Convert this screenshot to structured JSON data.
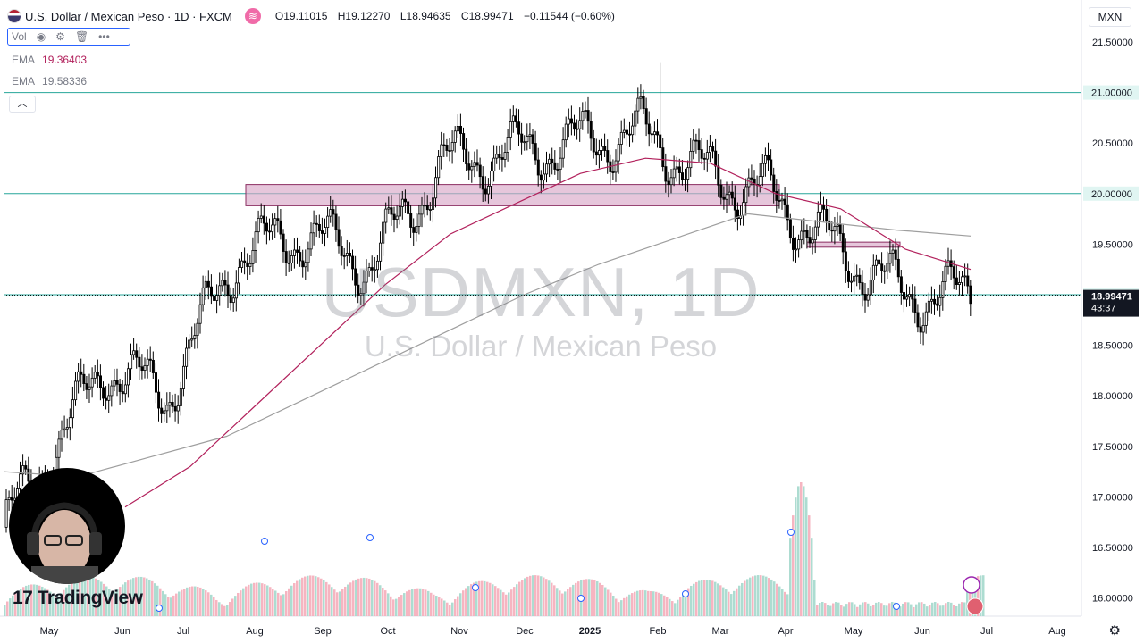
{
  "header": {
    "symbol_title": "U.S. Dollar / Mexican Peso · 1D · FXCM",
    "ohlc": [
      {
        "k": "O",
        "v": "19.11015"
      },
      {
        "k": "H",
        "v": "19.12270"
      },
      {
        "k": "L",
        "v": "18.94635"
      },
      {
        "k": "C",
        "v": "18.99471"
      }
    ],
    "change": "−0.11544 (−0.60%)"
  },
  "legend": {
    "vol_label": "Vol",
    "ema_label": "EMA",
    "ema_fast": "19.36403",
    "ema_slow": "19.58336"
  },
  "currency_button": "MXN",
  "watermark": {
    "ticker": "USDMXN, 1D",
    "name": "U.S. Dollar / Mexican Peso"
  },
  "logo_text": "TradingView",
  "colors": {
    "up": "#000000",
    "down": "#000000",
    "ema_fast": "#b2215c",
    "ema_slow": "#9e9e9e",
    "level_line": "#26a69a",
    "zone_fill": "#d8a8c8",
    "vol_up": "#9fd6c9",
    "vol_down": "#f4a8b6"
  },
  "chart_data": {
    "type": "candlestick",
    "symbol": "USDMXN",
    "timeframe": "1D",
    "x_tick_labels": [
      "May",
      "Jun",
      "Jul",
      "Aug",
      "Sep",
      "Oct",
      "Nov",
      "Dec",
      "2025",
      "Feb",
      "Mar",
      "Apr",
      "May",
      "Jun",
      "Jul",
      "Aug"
    ],
    "y_tick_labels": [
      "21.50000",
      "20.50000",
      "19.50000",
      "18.50000",
      "18.00000",
      "17.50000",
      "17.00000",
      "16.50000",
      "16.00000"
    ],
    "ylim": [
      15.9,
      21.6
    ],
    "price_path_monthly": [
      {
        "m": "May",
        "close": 16.7
      },
      {
        "m": "Jun",
        "close": 18.3
      },
      {
        "m": "Jul",
        "close": 18.0
      },
      {
        "m": "Aug",
        "close": 19.4
      },
      {
        "m": "Sep",
        "close": 19.6
      },
      {
        "m": "Oct",
        "close": 19.3
      },
      {
        "m": "Nov",
        "close": 20.3
      },
      {
        "m": "Dec",
        "close": 20.4
      },
      {
        "m": "2025",
        "close": 20.5
      },
      {
        "m": "Feb",
        "close": 20.6
      },
      {
        "m": "Mar",
        "close": 20.2
      },
      {
        "m": "Apr",
        "close": 20.0
      },
      {
        "m": "May",
        "close": 19.45
      },
      {
        "m": "Jun",
        "close": 19.0
      },
      {
        "m": "Jul",
        "close": 18.99
      }
    ],
    "peak_high": 21.3,
    "horizontal_levels": [
      "21.00000",
      "20.00000",
      "19.00000"
    ],
    "last_price": "18.99471",
    "countdown": "43:37",
    "zones": [
      {
        "from": "Aug",
        "to": "Apr",
        "low": 19.88,
        "high": 20.09
      },
      {
        "from": "Apr",
        "to": "May",
        "low": 19.47,
        "high": 19.52
      }
    ],
    "ema_fast_path": [
      16.9,
      17.3,
      17.9,
      18.5,
      19.1,
      19.6,
      19.9,
      20.2,
      20.35,
      20.3,
      20.0,
      19.85,
      19.45,
      19.25
    ],
    "ema_slow_path": [
      17.25,
      17.2,
      17.4,
      17.6,
      17.95,
      18.3,
      18.65,
      19.0,
      19.3,
      19.55,
      19.8,
      19.72,
      19.64,
      19.58
    ]
  }
}
